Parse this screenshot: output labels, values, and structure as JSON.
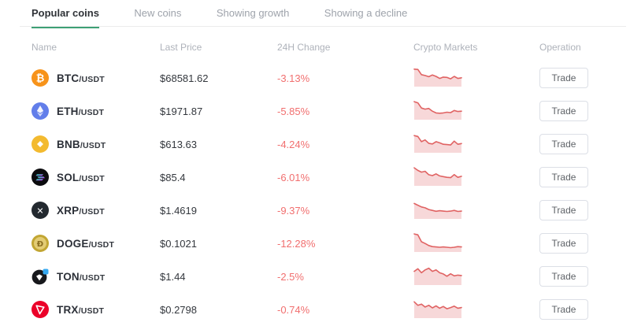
{
  "tabs": [
    {
      "label": "Popular coins",
      "active": true
    },
    {
      "label": "New coins",
      "active": false
    },
    {
      "label": "Showing growth",
      "active": false
    },
    {
      "label": "Showing a decline",
      "active": false
    }
  ],
  "columns": {
    "name": "Name",
    "last_price": "Last Price",
    "change": "24H Change",
    "markets": "Crypto Markets",
    "operation": "Operation"
  },
  "trade_label": "Trade",
  "colors": {
    "accent_green": "#3da075",
    "change_red": "#f16f6f",
    "spark_line": "#e06363",
    "spark_fill": "#f7d8d9"
  },
  "rows": [
    {
      "icon": "btc",
      "base": "BTC",
      "quote": "/USDT",
      "price": "$68581.62",
      "change": "-3.13%",
      "spark": [
        92,
        90,
        60,
        55,
        48,
        58,
        50,
        38,
        46,
        44,
        36,
        50,
        38,
        42
      ]
    },
    {
      "icon": "eth",
      "base": "ETH",
      "quote": "/USDT",
      "price": "$1971.87",
      "change": "-5.85%",
      "spark": [
        95,
        88,
        58,
        52,
        56,
        40,
        30,
        28,
        30,
        34,
        32,
        44,
        38,
        40
      ]
    },
    {
      "icon": "bnb",
      "base": "BNB",
      "quote": "/USDT",
      "price": "$613.63",
      "change": "-4.24%",
      "spark": [
        90,
        85,
        55,
        65,
        45,
        42,
        55,
        48,
        40,
        38,
        36,
        58,
        40,
        44
      ]
    },
    {
      "icon": "sol",
      "base": "SOL",
      "quote": "/USDT",
      "price": "$85.4",
      "change": "-6.01%",
      "spark": [
        95,
        80,
        70,
        75,
        55,
        50,
        60,
        48,
        44,
        40,
        38,
        56,
        40,
        46
      ]
    },
    {
      "icon": "xrp",
      "base": "XRP",
      "quote": "/USDT",
      "price": "$1.4619",
      "change": "-9.37%",
      "spark": [
        80,
        70,
        60,
        55,
        45,
        40,
        35,
        38,
        36,
        34,
        36,
        40,
        34,
        36
      ]
    },
    {
      "icon": "doge",
      "base": "DOGE",
      "quote": "/USDT",
      "price": "$0.1021",
      "change": "-12.28%",
      "spark": [
        95,
        90,
        50,
        40,
        28,
        22,
        20,
        18,
        20,
        18,
        16,
        18,
        22,
        20
      ]
    },
    {
      "icon": "ton",
      "base": "TON",
      "quote": "/USDT",
      "price": "$1.44",
      "change": "-2.5%",
      "spark": [
        70,
        85,
        62,
        78,
        88,
        70,
        78,
        62,
        55,
        42,
        56,
        44,
        48,
        46
      ]
    },
    {
      "icon": "trx",
      "base": "TRX",
      "quote": "/USDT",
      "price": "$0.2798",
      "change": "-0.74%",
      "spark": [
        85,
        65,
        72,
        55,
        65,
        50,
        62,
        48,
        58,
        45,
        52,
        60,
        48,
        52
      ]
    }
  ]
}
